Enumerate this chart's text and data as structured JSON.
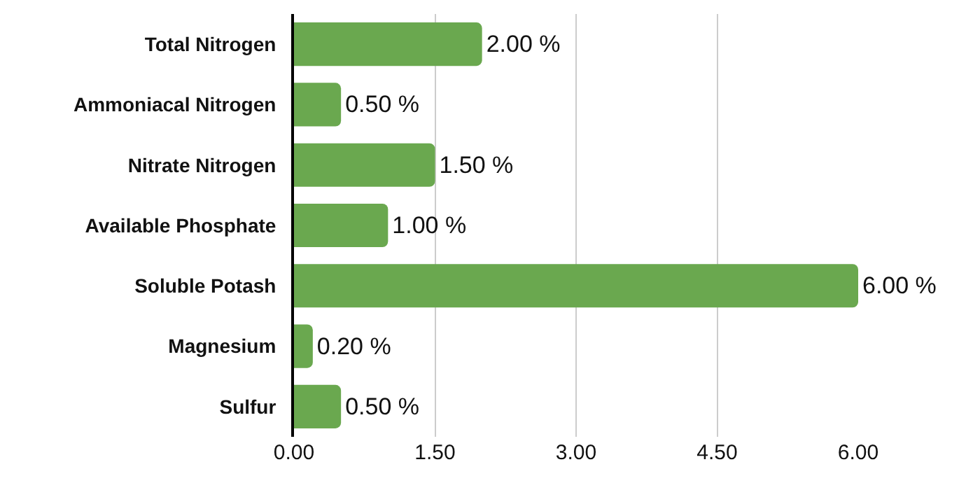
{
  "chart_data": {
    "type": "bar",
    "orientation": "horizontal",
    "categories": [
      "Total Nitrogen",
      "Ammoniacal Nitrogen",
      "Nitrate Nitrogen",
      "Available Phosphate",
      "Soluble Potash",
      "Magnesium",
      "Sulfur"
    ],
    "values": [
      2.0,
      0.5,
      1.5,
      1.0,
      6.0,
      0.2,
      0.5
    ],
    "value_labels": [
      "2.00 %",
      "0.50 %",
      "1.50 %",
      "1.00 %",
      "6.00 %",
      "0.20 %",
      "0.50 %"
    ],
    "color": "#6aa84f",
    "xlim": [
      0,
      6
    ],
    "xticks": [
      {
        "value": 0,
        "label": "0.00"
      },
      {
        "value": 1.5,
        "label": "1.50"
      },
      {
        "value": 3,
        "label": "3.00"
      },
      {
        "value": 4.5,
        "label": "4.50"
      },
      {
        "value": 6,
        "label": "6.00"
      }
    ],
    "grid": "x"
  }
}
